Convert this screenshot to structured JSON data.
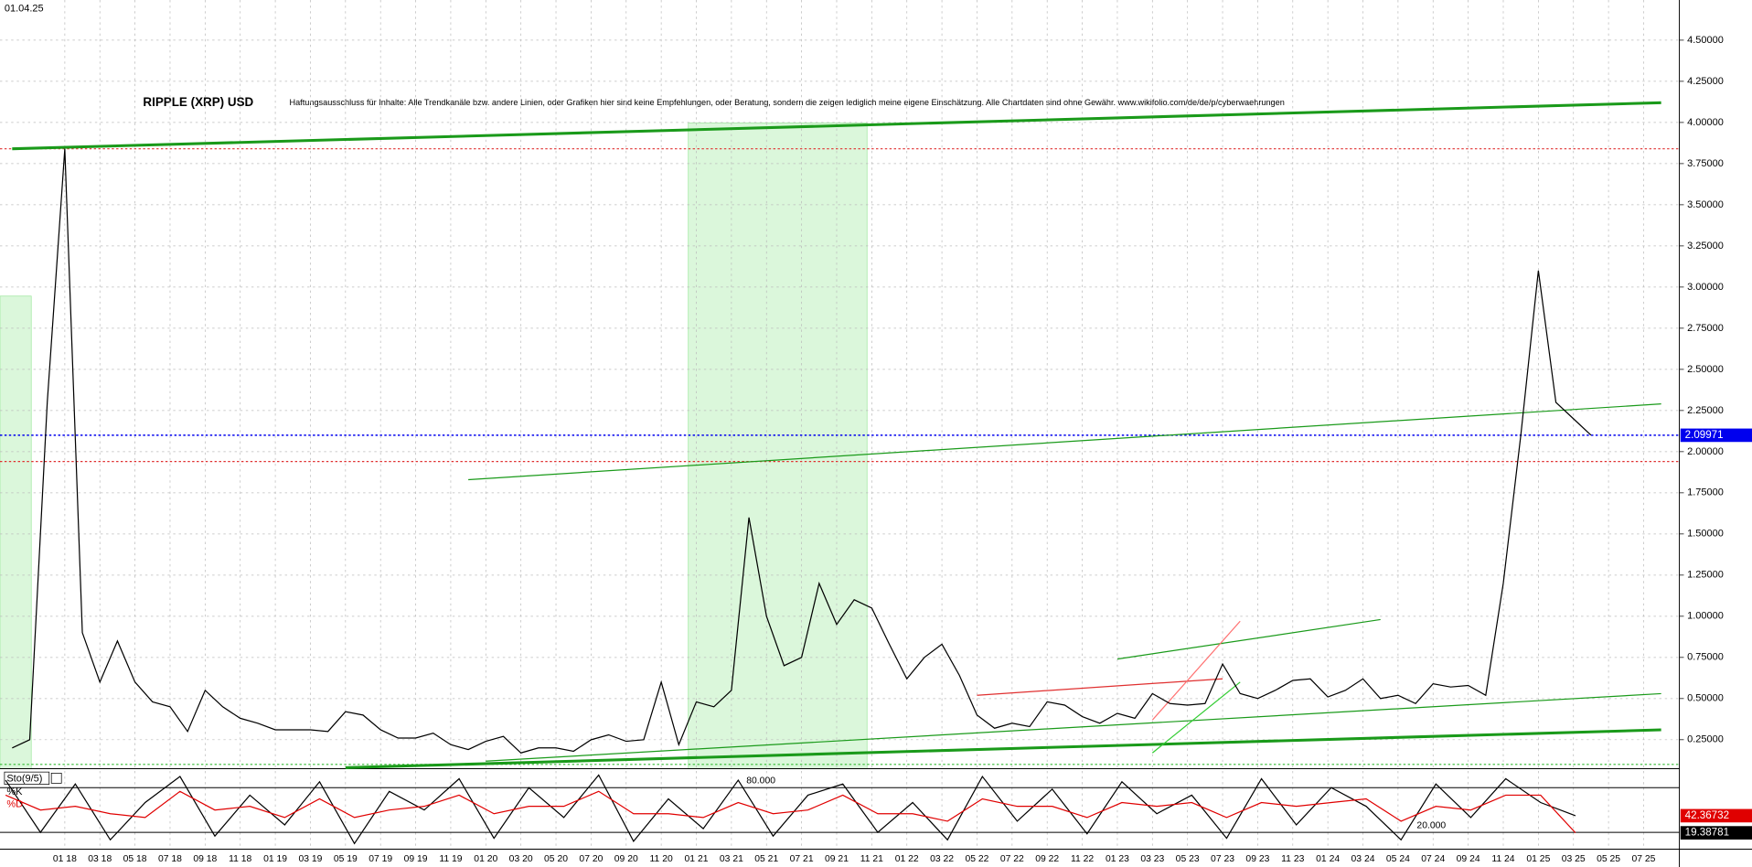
{
  "header": {
    "date": "01.04.25"
  },
  "chart_data": {
    "type": "line",
    "title": "RIPPLE (XRP) USD",
    "subtitle": "Haftungsausschluss für Inhalte: Alle Trendkanäle bzw. andere Linien, oder Grafiken hier sind keine Empfehlungen, oder Beratung, sondern die zeigen lediglich meine eigene Einschätzung. Alle Chartdaten sind ohne Gewähr.  www.wikifolio.com/de/de/p/cyberwaehrungen",
    "x": [
      "10 17",
      "11 17",
      "12 17",
      "01 18",
      "02 18",
      "03 18",
      "04 18",
      "05 18",
      "06 18",
      "07 18",
      "08 18",
      "09 18",
      "10 18",
      "11 18",
      "12 18",
      "01 19",
      "02 19",
      "03 19",
      "04 19",
      "05 19",
      "06 19",
      "07 19",
      "08 19",
      "09 19",
      "10 19",
      "11 19",
      "12 19",
      "01 20",
      "02 20",
      "03 20",
      "04 20",
      "05 20",
      "06 20",
      "07 20",
      "08 20",
      "09 20",
      "10 20",
      "11 20",
      "12 20",
      "01 21",
      "02 21",
      "03 21",
      "04 21",
      "05 21",
      "06 21",
      "07 21",
      "08 21",
      "09 21",
      "10 21",
      "11 21",
      "12 21",
      "01 22",
      "02 22",
      "03 22",
      "04 22",
      "05 22",
      "06 22",
      "07 22",
      "08 22",
      "09 22",
      "10 22",
      "11 22",
      "12 22",
      "01 23",
      "02 23",
      "03 23",
      "04 23",
      "05 23",
      "06 23",
      "07 23",
      "08 23",
      "09 23",
      "10 23",
      "11 23",
      "12 23",
      "01 24",
      "02 24",
      "03 24",
      "04 24",
      "05 24",
      "06 24",
      "07 24",
      "08 24",
      "09 24",
      "10 24",
      "11 24",
      "12 24",
      "01 25",
      "02 25",
      "03 25",
      "04 25"
    ],
    "values": [
      0.2,
      0.25,
      2.3,
      3.84,
      0.9,
      0.6,
      0.85,
      0.6,
      0.48,
      0.45,
      0.3,
      0.55,
      0.45,
      0.38,
      0.35,
      0.31,
      0.31,
      0.31,
      0.3,
      0.42,
      0.4,
      0.31,
      0.26,
      0.26,
      0.29,
      0.22,
      0.19,
      0.24,
      0.27,
      0.17,
      0.2,
      0.2,
      0.18,
      0.25,
      0.28,
      0.24,
      0.25,
      0.6,
      0.22,
      0.48,
      0.45,
      0.55,
      1.6,
      1.0,
      0.7,
      0.75,
      1.2,
      0.95,
      1.1,
      1.05,
      0.83,
      0.62,
      0.75,
      0.83,
      0.64,
      0.4,
      0.32,
      0.35,
      0.33,
      0.48,
      0.46,
      0.39,
      0.35,
      0.41,
      0.38,
      0.53,
      0.47,
      0.46,
      0.47,
      0.71,
      0.53,
      0.5,
      0.55,
      0.61,
      0.62,
      0.51,
      0.55,
      0.62,
      0.5,
      0.52,
      0.47,
      0.59,
      0.57,
      0.58,
      0.52,
      1.2,
      2.1,
      3.1,
      2.3,
      2.2,
      2.1
    ],
    "color": "#000000",
    "xticks": [
      "01 18",
      "03 18",
      "05 18",
      "07 18",
      "09 18",
      "11 18",
      "01 19",
      "03 19",
      "05 19",
      "07 19",
      "09 19",
      "11 19",
      "01 20",
      "03 20",
      "05 20",
      "07 20",
      "09 20",
      "11 20",
      "01 21",
      "03 21",
      "05 21",
      "07 21",
      "09 21",
      "11 21",
      "01 22",
      "03 22",
      "05 22",
      "07 22",
      "09 22",
      "11 22",
      "01 23",
      "03 23",
      "05 23",
      "07 23",
      "09 23",
      "11 23",
      "01 24",
      "03 24",
      "05 24",
      "07 24",
      "09 24",
      "11 24",
      "01 25",
      "03 25",
      "05 25",
      "07 25"
    ],
    "ylim": [
      0.074,
      4.744
    ],
    "yticks": [
      {
        "value": 0.25,
        "label": "0.25000"
      },
      {
        "value": 0.5,
        "label": "0.50000"
      },
      {
        "value": 0.75,
        "label": "0.75000"
      },
      {
        "value": 1,
        "label": "1.00000"
      },
      {
        "value": 1.25,
        "label": "1.25000"
      },
      {
        "value": 1.5,
        "label": "1.50000"
      },
      {
        "value": 1.75,
        "label": "1.75000"
      },
      {
        "value": 2,
        "label": "2.00000"
      },
      {
        "value": 2.25,
        "label": "2.25000"
      },
      {
        "value": 2.5,
        "label": "2.50000"
      },
      {
        "value": 2.75,
        "label": "2.75000"
      },
      {
        "value": 3,
        "label": "3.00000"
      },
      {
        "value": 3.25,
        "label": "3.25000"
      },
      {
        "value": 3.5,
        "label": "3.50000"
      },
      {
        "value": 3.75,
        "label": "3.75000"
      },
      {
        "value": 4,
        "label": "4.00000"
      },
      {
        "value": 4.25,
        "label": "4.25000"
      },
      {
        "value": 4.5,
        "label": "4.50000"
      }
    ],
    "grid": true,
    "hlines": [
      {
        "value": 3.84,
        "color": "#e03030"
      },
      {
        "value": 1.94,
        "color": "#e03030"
      },
      {
        "value": 0.1,
        "color": "#33bb33"
      }
    ],
    "current": {
      "value": 2.09971,
      "color": "#0000ee"
    },
    "trendlines": [
      {
        "x": [
          "10 17",
          "08 25"
        ],
        "y": [
          3.84,
          4.12
        ],
        "color": "#1a9a1a",
        "width": 2.5
      },
      {
        "x": [
          "12 19",
          "08 25"
        ],
        "y": [
          1.83,
          2.29
        ],
        "color": "#1a9a1a",
        "width": 1
      },
      {
        "x": [
          "05 19",
          "08 25"
        ],
        "y": [
          0.08,
          0.31
        ],
        "color": "#1a9a1a",
        "width": 2.5
      },
      {
        "x": [
          "01 20",
          "08 25"
        ],
        "y": [
          0.12,
          0.53
        ],
        "color": "#1a9a1a",
        "width": 1
      },
      {
        "x": [
          "01 23",
          "04 24"
        ],
        "y": [
          0.74,
          0.98
        ],
        "color": "#1a9a1a",
        "width": 1
      },
      {
        "x": [
          "05 22",
          "07 23"
        ],
        "y": [
          0.52,
          0.62
        ],
        "color": "#e03030",
        "width": 1
      },
      {
        "x": [
          "03 23",
          "08 23"
        ],
        "y": [
          0.17,
          0.6
        ],
        "color": "#33cc33",
        "width": 1
      },
      {
        "x": [
          "03 23",
          "08 23"
        ],
        "y": [
          0.37,
          0.97
        ],
        "color": "#ff7070",
        "width": 1
      }
    ],
    "indicator": {
      "type": "line",
      "label": "Sto(9/5)",
      "ylim": [
        -2.5,
        104
      ],
      "levels": [
        {
          "value": 80,
          "label": "80.000"
        },
        {
          "value": 20,
          "label": "20.000"
        }
      ],
      "series": [
        {
          "name": "%K",
          "color": "#000000",
          "values": [
            90,
            20,
            85,
            10,
            60,
            95,
            15,
            70,
            30,
            88,
            5,
            75,
            50,
            92,
            12,
            80,
            40,
            97,
            8,
            65,
            25,
            90,
            15,
            70,
            85,
            20,
            60,
            10,
            95,
            35,
            78,
            18,
            88,
            45,
            70,
            12,
            92,
            30,
            80,
            55,
            10,
            85,
            40,
            92,
            60,
            42.37
          ]
        },
        {
          "name": "%D",
          "color": "#e00000",
          "values": [
            70,
            50,
            55,
            45,
            40,
            75,
            50,
            55,
            40,
            65,
            40,
            50,
            55,
            70,
            45,
            55,
            55,
            75,
            45,
            45,
            40,
            60,
            45,
            50,
            70,
            45,
            45,
            35,
            65,
            55,
            55,
            40,
            60,
            55,
            60,
            40,
            60,
            55,
            60,
            65,
            35,
            55,
            50,
            70,
            70,
            19.39
          ]
        }
      ],
      "last_values": [
        42.36732,
        19.38781
      ]
    }
  }
}
